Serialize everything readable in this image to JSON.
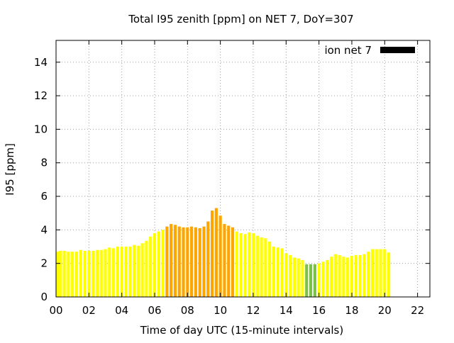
{
  "chart_data": {
    "type": "bar",
    "title": "Total I95 zenith [ppm] on NET 7, DoY=307",
    "xlabel": "Time of day UTC (15-minute intervals)",
    "ylabel": "I95 [ppm]",
    "legend": {
      "label": "ion net 7",
      "placement": "top-right",
      "color": "#000000"
    },
    "grid": true,
    "interval_hours": 0.25,
    "xlim": [
      0,
      22.75
    ],
    "ylim": [
      0,
      15.3
    ],
    "x_ticks": [
      "00",
      "02",
      "04",
      "06",
      "08",
      "10",
      "12",
      "14",
      "16",
      "18",
      "20",
      "22"
    ],
    "y_ticks": [
      "0",
      "2",
      "4",
      "6",
      "8",
      "10",
      "12",
      "14"
    ],
    "x_tick_values": [
      0,
      2,
      4,
      6,
      8,
      10,
      12,
      14,
      16,
      18,
      20,
      22
    ],
    "y_tick_values": [
      0,
      2,
      4,
      6,
      8,
      10,
      12,
      14
    ],
    "colors": {
      "low": "#ffff00",
      "medium": "#ffa500",
      "quiet": "#7cbf4b"
    },
    "values": [
      2.7,
      2.75,
      2.75,
      2.7,
      2.7,
      2.7,
      2.8,
      2.75,
      2.75,
      2.75,
      2.8,
      2.8,
      2.85,
      2.95,
      2.9,
      3.0,
      3.0,
      3.0,
      3.0,
      3.1,
      3.05,
      3.2,
      3.35,
      3.6,
      3.8,
      3.9,
      4.0,
      4.2,
      4.35,
      4.3,
      4.2,
      4.15,
      4.15,
      4.2,
      4.15,
      4.1,
      4.2,
      4.5,
      5.15,
      5.3,
      4.85,
      4.35,
      4.25,
      4.15,
      3.9,
      3.8,
      3.75,
      3.85,
      3.8,
      3.65,
      3.55,
      3.5,
      3.3,
      3.0,
      2.95,
      2.9,
      2.6,
      2.5,
      2.35,
      2.3,
      2.2,
      1.95,
      1.95,
      1.95,
      2.0,
      2.1,
      2.2,
      2.4,
      2.55,
      2.5,
      2.4,
      2.35,
      2.45,
      2.5,
      2.5,
      2.55,
      2.7,
      2.85,
      2.85,
      2.85,
      2.85,
      2.65
    ],
    "levels": [
      "low",
      "low",
      "low",
      "low",
      "low",
      "low",
      "low",
      "low",
      "low",
      "low",
      "low",
      "low",
      "low",
      "low",
      "low",
      "low",
      "low",
      "low",
      "low",
      "low",
      "low",
      "low",
      "low",
      "low",
      "low",
      "low",
      "low",
      "medium",
      "medium",
      "medium",
      "medium",
      "medium",
      "medium",
      "medium",
      "medium",
      "medium",
      "medium",
      "medium",
      "medium",
      "medium",
      "medium",
      "medium",
      "medium",
      "medium",
      "low",
      "low",
      "low",
      "low",
      "low",
      "low",
      "low",
      "low",
      "low",
      "low",
      "low",
      "low",
      "low",
      "low",
      "low",
      "low",
      "low",
      "quiet",
      "quiet",
      "quiet",
      "low",
      "low",
      "low",
      "low",
      "low",
      "low",
      "low",
      "low",
      "low",
      "low",
      "low",
      "low",
      "low",
      "low",
      "low",
      "low",
      "low",
      "low"
    ]
  }
}
